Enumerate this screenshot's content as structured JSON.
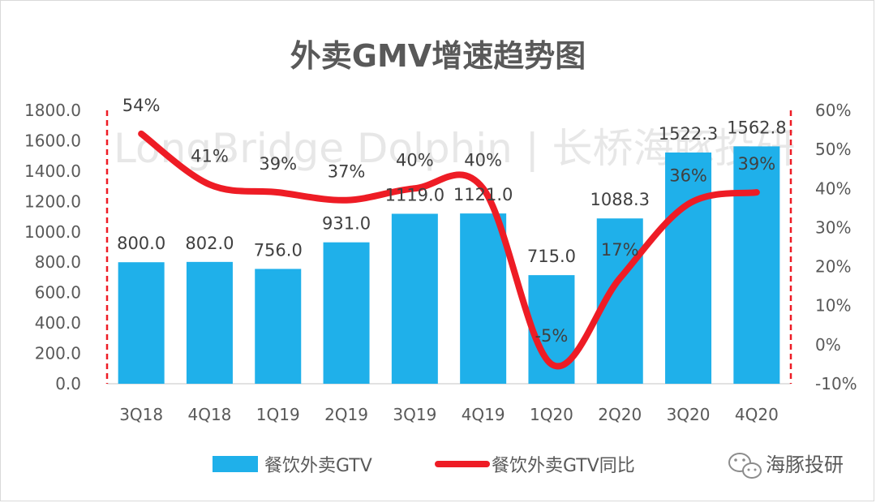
{
  "chart_data": {
    "type": "bar+line",
    "title": "外卖GMV增速趋势图",
    "categories": [
      "3Q18",
      "4Q18",
      "1Q19",
      "2Q19",
      "3Q19",
      "4Q19",
      "1Q20",
      "2Q20",
      "3Q20",
      "4Q20"
    ],
    "series": [
      {
        "name": "餐饮外卖GTV",
        "type": "bar",
        "axis": "left",
        "color": "#1fb0ea",
        "values": [
          800.0,
          802.0,
          756.0,
          931.0,
          1119.0,
          1121.0,
          715.0,
          1088.3,
          1522.3,
          1562.8
        ],
        "labels": [
          "800.0",
          "802.0",
          "756.0",
          "931.0",
          "1119.0",
          "1121.0",
          "715.0",
          "1088.3",
          "1522.3",
          "1562.8"
        ]
      },
      {
        "name": "餐饮外卖GTV同比",
        "type": "line",
        "axis": "right",
        "color": "#ee1c25",
        "values": [
          54,
          41,
          39,
          37,
          40,
          40,
          -5,
          17,
          36,
          39
        ],
        "labels": [
          "54%",
          "41%",
          "39%",
          "37%",
          "40%",
          "40%",
          "-5%",
          "17%",
          "36%",
          "39%"
        ]
      }
    ],
    "y_left": {
      "range": [
        0,
        1800
      ],
      "ticks": [
        "0.0",
        "200.0",
        "400.0",
        "600.0",
        "800.0",
        "1000.0",
        "1200.0",
        "1400.0",
        "1600.0",
        "1800.0"
      ]
    },
    "y_right": {
      "range": [
        -10,
        60
      ],
      "ticks": [
        "-10%",
        "0%",
        "10%",
        "20%",
        "30%",
        "40%",
        "50%",
        "60%"
      ]
    },
    "legend_position": "bottom"
  },
  "watermark": "LongBridge Dolphin | 长桥海豚投研",
  "brand": {
    "icon": "wechat-icon",
    "name": "海豚投研"
  }
}
